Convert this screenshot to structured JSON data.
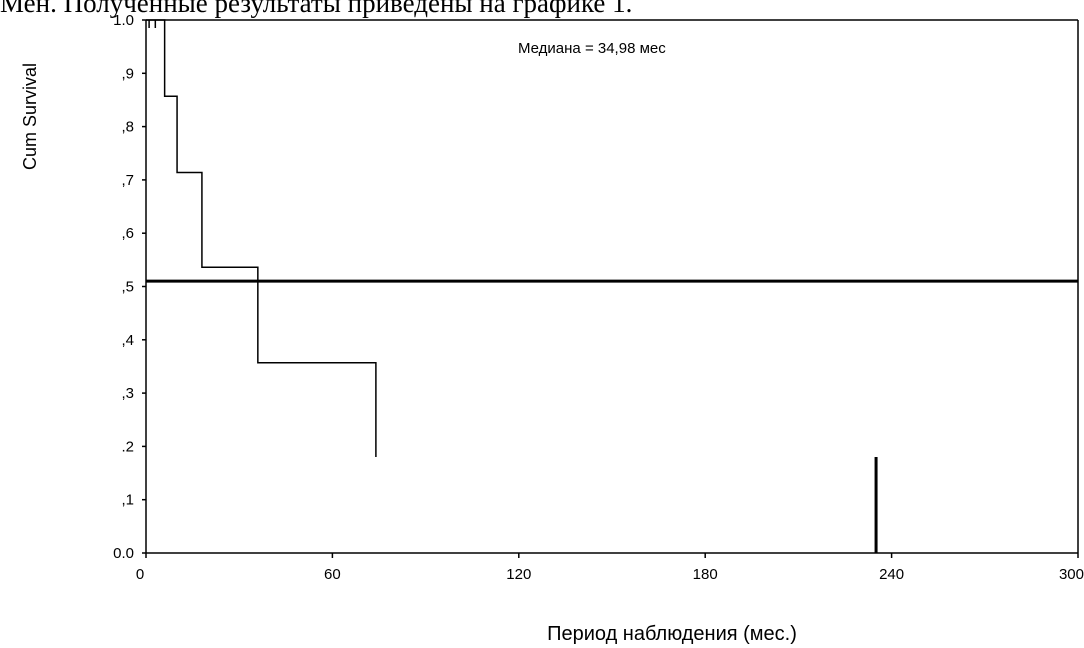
{
  "header_text": "Мен. Полученные результаты приведены на графике 1.",
  "chart_data": {
    "type": "line",
    "xlabel": "Период наблюдения (мес.)",
    "ylabel": "Cum Survival",
    "annotation": "Медиана = 34,98 мес",
    "xlim": [
      0,
      300
    ],
    "ylim": [
      0,
      1
    ],
    "x_ticks": [
      0,
      60,
      120,
      180,
      240,
      300
    ],
    "x_tick_labels": [
      "0",
      "60",
      "120",
      "180",
      "240",
      "300"
    ],
    "y_ticks": [
      0,
      0.1,
      0.2,
      0.3,
      0.4,
      0.5,
      0.6,
      0.7,
      0.8,
      0.9,
      1.0
    ],
    "y_tick_labels": [
      "0.0",
      ",1",
      ".2",
      ",3",
      ",4",
      ",5",
      ",6",
      ",7",
      ",8",
      ",9",
      "1.0"
    ],
    "median_line_y": 0.51,
    "survival_steps": [
      {
        "x": 0,
        "y": 1.0
      },
      {
        "x": 6,
        "y": 1.0
      },
      {
        "x": 6,
        "y": 0.857
      },
      {
        "x": 10,
        "y": 0.857
      },
      {
        "x": 10,
        "y": 0.714
      },
      {
        "x": 18,
        "y": 0.714
      },
      {
        "x": 18,
        "y": 0.536
      },
      {
        "x": 36,
        "y": 0.536
      },
      {
        "x": 36,
        "y": 0.357
      },
      {
        "x": 74,
        "y": 0.357
      },
      {
        "x": 74,
        "y": 0.18
      }
    ],
    "censored": [
      {
        "x": 1,
        "y_from": 1.0,
        "y_to": 1.0
      },
      {
        "x": 3,
        "y_from": 1.0,
        "y_to": 1.0
      },
      {
        "x": 235,
        "y_from": 0.0,
        "y_to": 0.18
      }
    ]
  }
}
